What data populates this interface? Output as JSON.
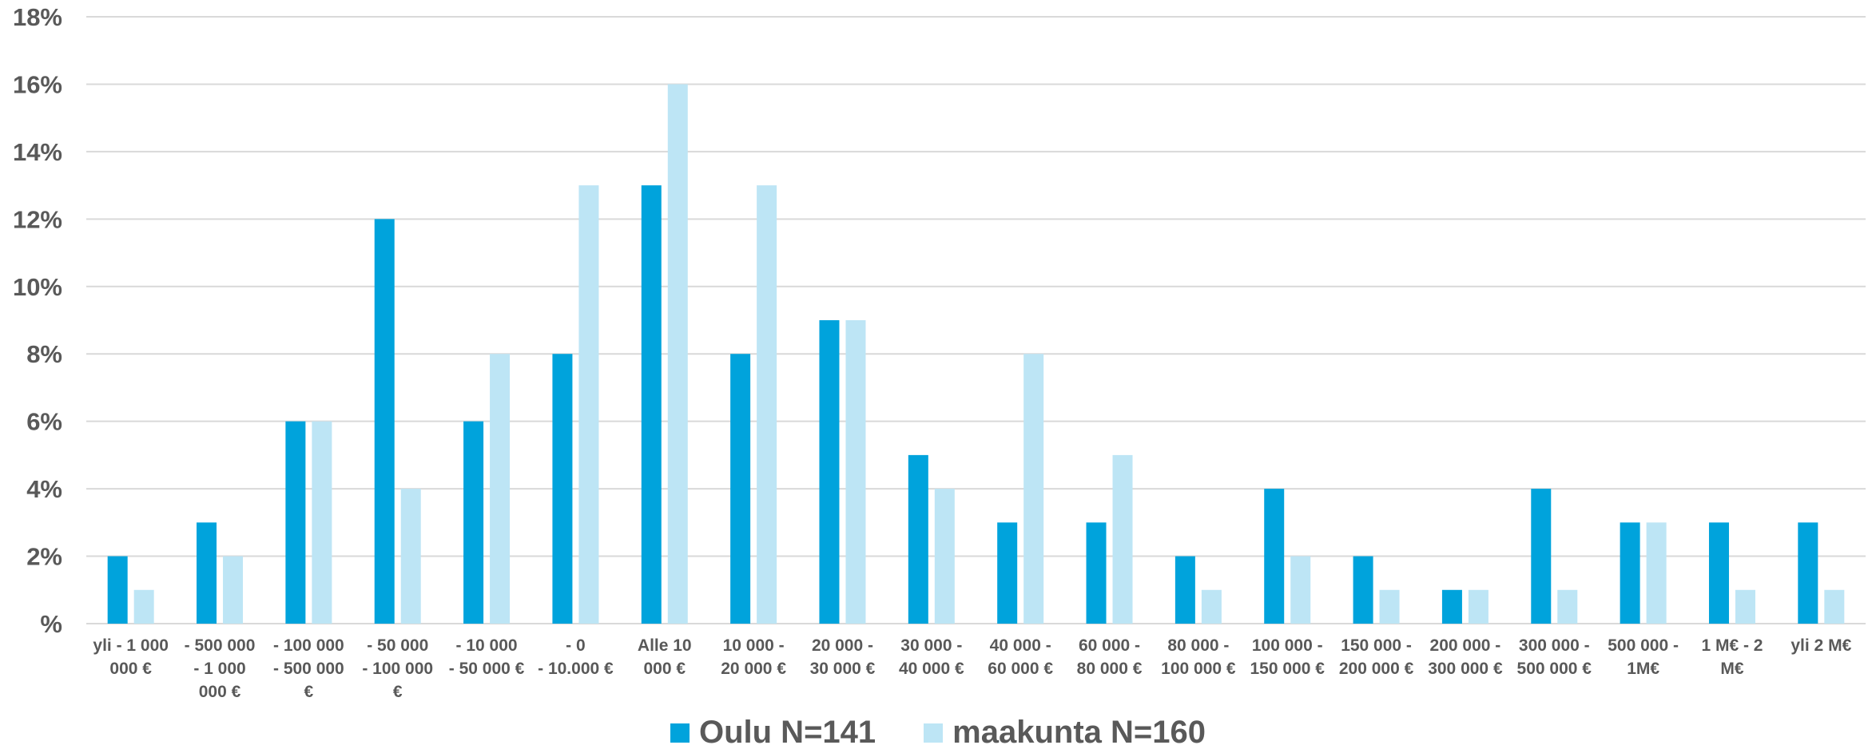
{
  "chart_data": {
    "type": "bar",
    "title": "",
    "xlabel": "",
    "ylabel": "",
    "ylim": [
      0,
      18
    ],
    "yticks": [
      "%",
      "2%",
      "4%",
      "6%",
      "8%",
      "10%",
      "12%",
      "14%",
      "16%",
      "18%"
    ],
    "grid": true,
    "legend_position": "bottom",
    "categories": [
      [
        "yli - 1 000",
        "000 €"
      ],
      [
        "- 500 000",
        "- 1 000",
        "000 €"
      ],
      [
        "- 100 000",
        "- 500 000",
        "€"
      ],
      [
        "- 50 000",
        "- 100 000",
        "€"
      ],
      [
        "- 10 000",
        "- 50 000 €"
      ],
      [
        "- 0",
        "- 10.000 €"
      ],
      [
        "Alle 10",
        "000 €"
      ],
      [
        "10 000 -",
        "20 000 €"
      ],
      [
        "20 000 -",
        "30 000 €"
      ],
      [
        "30 000 -",
        "40 000 €"
      ],
      [
        "40 000 -",
        "60 000 €"
      ],
      [
        "60 000 -",
        "80 000 €"
      ],
      [
        "80 000 -",
        "100 000 €"
      ],
      [
        "100 000 -",
        "150 000 €"
      ],
      [
        "150 000 -",
        "200 000 €"
      ],
      [
        "200 000 -",
        "300 000 €"
      ],
      [
        "300 000 -",
        "500 000 €"
      ],
      [
        "500 000 -",
        "1M€"
      ],
      [
        "1 M€ - 2",
        "M€"
      ],
      [
        "yli 2 M€"
      ]
    ],
    "series": [
      {
        "name": "Oulu N=141",
        "color": "#00A3DC",
        "values": [
          2,
          3,
          6,
          12,
          6,
          8,
          13,
          8,
          9,
          5,
          3,
          3,
          2,
          4,
          2,
          1,
          4,
          3,
          3,
          3
        ]
      },
      {
        "name": "maakunta N=160",
        "color": "#BDE5F5",
        "values": [
          1,
          2,
          6,
          4,
          8,
          13,
          16,
          13,
          9,
          4,
          8,
          5,
          1,
          2,
          1,
          1,
          1,
          3,
          1,
          1
        ]
      }
    ]
  }
}
